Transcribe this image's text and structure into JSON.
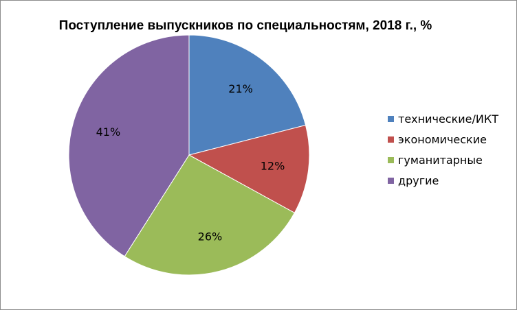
{
  "chart_data": {
    "type": "pie",
    "title": "Поступление выпускников по специальностям, 2018 г., %",
    "categories": [
      "технические/ИКТ",
      "экономические",
      "гуманитарные",
      "другие"
    ],
    "values": [
      21,
      12,
      26,
      41
    ],
    "labels": [
      "21%",
      "12%",
      "26%",
      "41%"
    ],
    "colors": [
      "#4f81bd",
      "#c0504d",
      "#9bbb59",
      "#8064a2"
    ],
    "legend_position": "right"
  }
}
